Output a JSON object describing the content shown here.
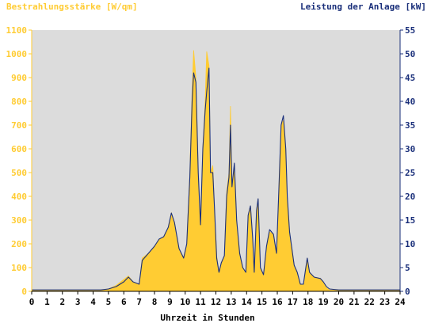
{
  "colors": {
    "background": "#ffffff",
    "plot_area": "#dcdcdc",
    "irradiance": "#ffcc33",
    "power": "#1a2f7a",
    "axis_text": "#000000"
  },
  "chart_data": {
    "type": "area",
    "left_axis_label": "Bestrahlungsstärke [W/qm]",
    "right_axis_label": "Leistung der Anlage [kW]",
    "xlabel": "Uhrzeit in Stunden",
    "xlim": [
      0,
      24
    ],
    "ylim_left": [
      0,
      1100
    ],
    "ylim_right": [
      0,
      55
    ],
    "x_ticks": [
      "0",
      "1",
      "2",
      "3",
      "4",
      "5",
      "6",
      "7",
      "8",
      "9",
      "10",
      "11",
      "12",
      "13",
      "14",
      "15",
      "16",
      "17",
      "18",
      "19",
      "20",
      "21",
      "22",
      "23",
      "24"
    ],
    "y_ticks_left": [
      "0",
      "100",
      "200",
      "300",
      "400",
      "500",
      "600",
      "700",
      "800",
      "900",
      "1000",
      "1100"
    ],
    "y_ticks_right": [
      "0",
      "5",
      "10",
      "15",
      "20",
      "25",
      "30",
      "35",
      "40",
      "45",
      "50",
      "55"
    ],
    "grid": false,
    "series": [
      {
        "name": "Bestrahlungsstärke [W/qm]",
        "axis": "left",
        "style": "filled-area",
        "points": [
          [
            0,
            5
          ],
          [
            4.5,
            5
          ],
          [
            5,
            10
          ],
          [
            5.5,
            25
          ],
          [
            6,
            50
          ],
          [
            6.3,
            65
          ],
          [
            6.6,
            40
          ],
          [
            7,
            30
          ],
          [
            7.2,
            140
          ],
          [
            7.6,
            160
          ],
          [
            8,
            190
          ],
          [
            8.3,
            220
          ],
          [
            8.6,
            230
          ],
          [
            8.9,
            270
          ],
          [
            9.1,
            330
          ],
          [
            9.3,
            290
          ],
          [
            9.6,
            180
          ],
          [
            9.9,
            140
          ],
          [
            10.1,
            200
          ],
          [
            10.3,
            500
          ],
          [
            10.45,
            850
          ],
          [
            10.55,
            1015
          ],
          [
            10.7,
            900
          ],
          [
            10.85,
            500
          ],
          [
            11,
            280
          ],
          [
            11.15,
            600
          ],
          [
            11.3,
            800
          ],
          [
            11.4,
            1010
          ],
          [
            11.55,
            950
          ],
          [
            11.65,
            500
          ],
          [
            11.8,
            530
          ],
          [
            11.9,
            360
          ],
          [
            12.05,
            150
          ],
          [
            12.2,
            80
          ],
          [
            12.35,
            120
          ],
          [
            12.55,
            150
          ],
          [
            12.7,
            420
          ],
          [
            12.85,
            500
          ],
          [
            12.95,
            780
          ],
          [
            13.05,
            450
          ],
          [
            13.2,
            520
          ],
          [
            13.35,
            300
          ],
          [
            13.55,
            160
          ],
          [
            13.75,
            100
          ],
          [
            13.95,
            80
          ],
          [
            14.1,
            320
          ],
          [
            14.25,
            360
          ],
          [
            14.4,
            220
          ],
          [
            14.5,
            80
          ],
          [
            14.65,
            340
          ],
          [
            14.75,
            390
          ],
          [
            14.9,
            100
          ],
          [
            15.1,
            70
          ],
          [
            15.3,
            190
          ],
          [
            15.5,
            250
          ],
          [
            15.75,
            240
          ],
          [
            15.95,
            160
          ],
          [
            16.1,
            420
          ],
          [
            16.25,
            700
          ],
          [
            16.4,
            720
          ],
          [
            16.55,
            600
          ],
          [
            16.65,
            400
          ],
          [
            16.8,
            250
          ],
          [
            17.1,
            110
          ],
          [
            17.3,
            80
          ],
          [
            17.5,
            30
          ],
          [
            17.7,
            25
          ],
          [
            17.95,
            140
          ],
          [
            18.1,
            80
          ],
          [
            18.4,
            60
          ],
          [
            18.8,
            55
          ],
          [
            19,
            40
          ],
          [
            19.2,
            15
          ],
          [
            19.4,
            5
          ],
          [
            24,
            5
          ]
        ]
      },
      {
        "name": "Leistung der Anlage [kW]",
        "axis": "right",
        "style": "line",
        "points": [
          [
            0,
            0.3
          ],
          [
            4.5,
            0.3
          ],
          [
            5,
            0.5
          ],
          [
            5.5,
            1
          ],
          [
            6,
            2
          ],
          [
            6.3,
            3
          ],
          [
            6.6,
            2
          ],
          [
            7,
            1.5
          ],
          [
            7.2,
            6.5
          ],
          [
            7.6,
            8
          ],
          [
            8,
            9.5
          ],
          [
            8.3,
            11
          ],
          [
            8.6,
            11.5
          ],
          [
            8.9,
            13.5
          ],
          [
            9.1,
            16.5
          ],
          [
            9.3,
            14.5
          ],
          [
            9.6,
            9
          ],
          [
            9.9,
            7
          ],
          [
            10.1,
            10
          ],
          [
            10.3,
            24
          ],
          [
            10.45,
            40
          ],
          [
            10.55,
            46
          ],
          [
            10.7,
            44
          ],
          [
            10.85,
            25
          ],
          [
            11,
            14
          ],
          [
            11.15,
            30
          ],
          [
            11.3,
            38
          ],
          [
            11.4,
            42
          ],
          [
            11.55,
            47
          ],
          [
            11.65,
            25
          ],
          [
            11.8,
            25
          ],
          [
            11.9,
            18
          ],
          [
            12.05,
            7
          ],
          [
            12.2,
            4
          ],
          [
            12.35,
            6
          ],
          [
            12.55,
            7.5
          ],
          [
            12.7,
            20
          ],
          [
            12.85,
            24
          ],
          [
            12.95,
            35
          ],
          [
            13.05,
            22
          ],
          [
            13.2,
            27
          ],
          [
            13.35,
            15
          ],
          [
            13.55,
            8
          ],
          [
            13.75,
            5
          ],
          [
            13.95,
            4
          ],
          [
            14.1,
            16
          ],
          [
            14.25,
            18
          ],
          [
            14.4,
            11
          ],
          [
            14.5,
            4
          ],
          [
            14.65,
            17
          ],
          [
            14.75,
            19.5
          ],
          [
            14.9,
            5
          ],
          [
            15.1,
            3.5
          ],
          [
            15.3,
            9.5
          ],
          [
            15.5,
            13
          ],
          [
            15.75,
            12
          ],
          [
            15.95,
            8
          ],
          [
            16.1,
            21
          ],
          [
            16.25,
            35
          ],
          [
            16.4,
            37
          ],
          [
            16.55,
            30
          ],
          [
            16.65,
            20
          ],
          [
            16.8,
            12.5
          ],
          [
            17.1,
            5.5
          ],
          [
            17.3,
            4
          ],
          [
            17.5,
            1.5
          ],
          [
            17.7,
            1.5
          ],
          [
            17.95,
            7
          ],
          [
            18.1,
            4
          ],
          [
            18.4,
            3
          ],
          [
            18.8,
            2.7
          ],
          [
            19,
            2
          ],
          [
            19.2,
            1
          ],
          [
            19.4,
            0.5
          ],
          [
            20,
            0.3
          ],
          [
            24,
            0.3
          ]
        ]
      }
    ]
  }
}
